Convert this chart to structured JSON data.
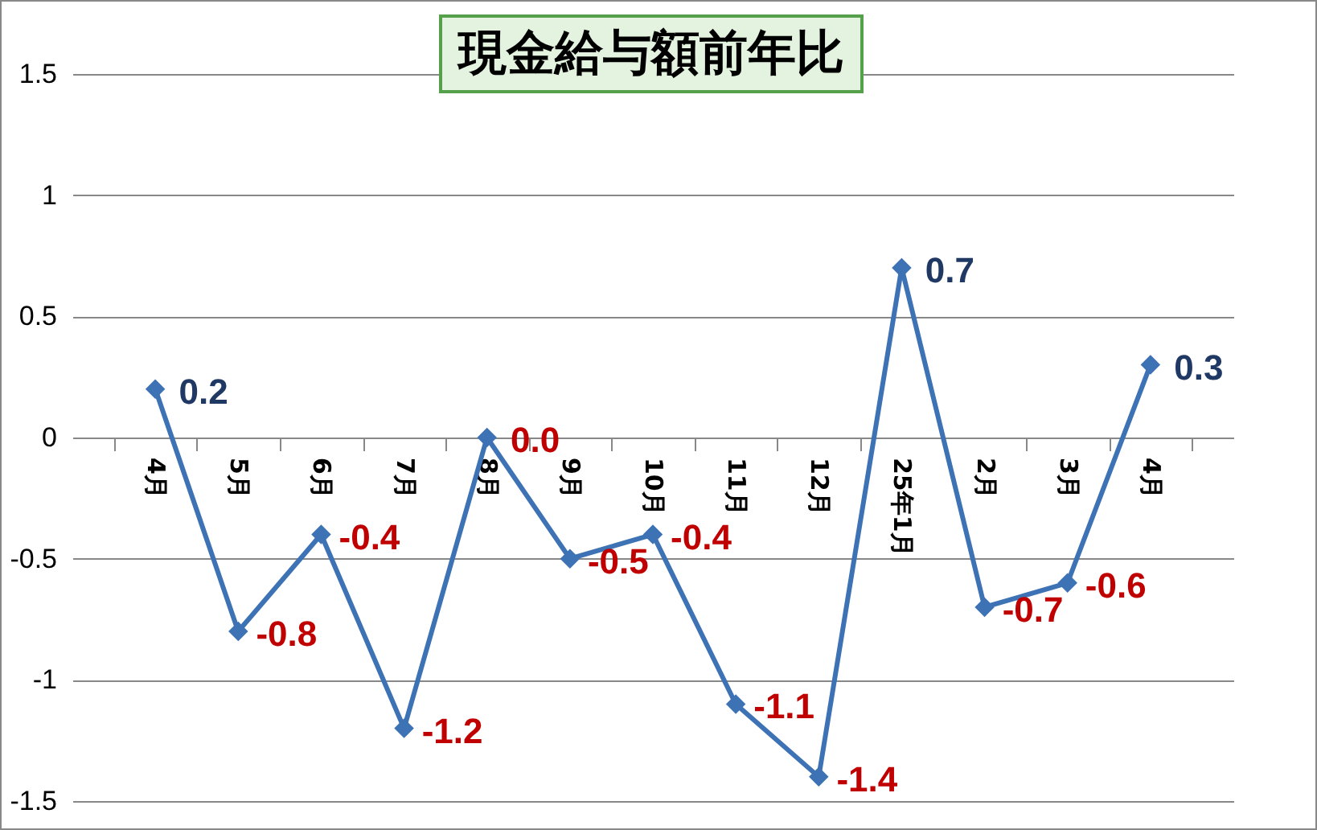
{
  "chart_data": {
    "type": "line",
    "title": "現金給与額前年比",
    "categories": [
      "4月",
      "5月",
      "6月",
      "7月",
      "8月",
      "9月",
      "10月",
      "11月",
      "12月",
      "25年1月",
      "2月",
      "3月",
      "4月"
    ],
    "series": [
      {
        "color": "#3d72b4",
        "values": [
          0.2,
          -0.8,
          -0.4,
          -1.2,
          0.0,
          -0.5,
          -0.4,
          -1.1,
          -1.4,
          0.7,
          -0.7,
          -0.6,
          0.3
        ],
        "value_labels": [
          "0.2",
          "-0.8",
          "-0.4",
          "-1.2",
          "0.0",
          "-0.5",
          "-0.4",
          "-1.1",
          "-1.4",
          "0.7",
          "-0.7",
          "-0.6",
          "0.3"
        ]
      }
    ],
    "ylim": [
      -1.5,
      1.5
    ],
    "yticks": [
      -1.5,
      -1,
      -0.5,
      0,
      0.5,
      1,
      1.5
    ],
    "grid": "y",
    "marker": "diamond"
  }
}
